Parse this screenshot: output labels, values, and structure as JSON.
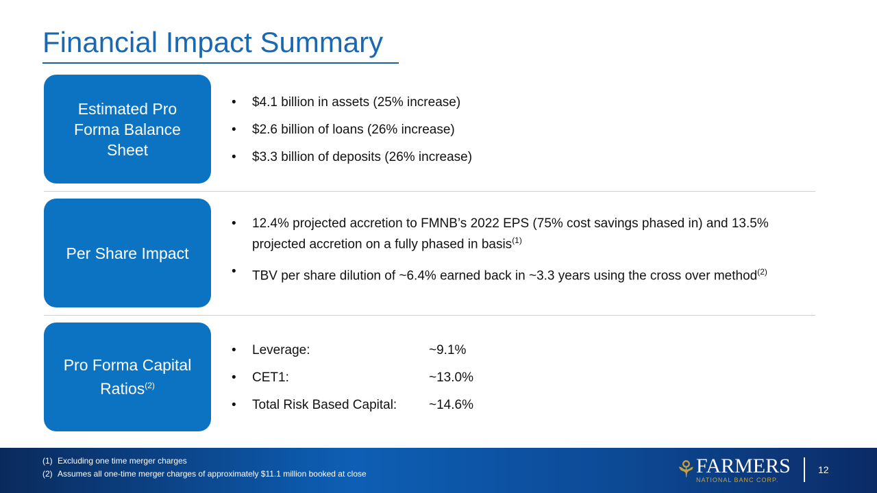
{
  "title": "Financial Impact Summary",
  "sections": [
    {
      "label": "Estimated Pro Forma Balance Sheet",
      "bullets": [
        "$4.1 billion in assets (25% increase)",
        "$2.6 billion of loans (26% increase)",
        "$3.3 billion of deposits (26% increase)"
      ]
    },
    {
      "label": "Per Share Impact",
      "bullets": [
        "12.4% projected accretion to FMNB’s 2022 EPS (75% cost savings phased in) and 13.5% projected accretion on a fully phased in basis",
        "TBV per share dilution of ~6.4% earned back in ~3.3 years using the cross over method"
      ],
      "sups": [
        "(1)",
        "(2)"
      ]
    },
    {
      "label": "Pro Forma Capital Ratios",
      "label_sup": "(2)",
      "ratios": [
        {
          "name": "Leverage:",
          "value": "~9.1%"
        },
        {
          "name": "CET1:",
          "value": "~13.0%"
        },
        {
          "name": "Total Risk Based Capital:",
          "value": "~14.6%"
        }
      ]
    }
  ],
  "footnotes": [
    {
      "num": "(1)",
      "text": "Excluding one time merger charges"
    },
    {
      "num": "(2)",
      "text": "Assumes all one-time merger charges of approximately $11.1 million booked at close"
    }
  ],
  "logo": {
    "name": "FARMERS",
    "sub": "NATIONAL BANC CORP."
  },
  "page_number": "12"
}
